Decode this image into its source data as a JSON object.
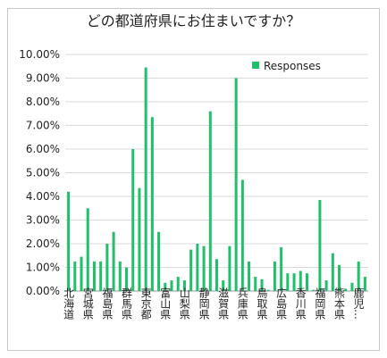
{
  "chart_data": {
    "type": "bar",
    "title": "どの都道府県にお住まいですか？",
    "series": [
      {
        "name": "Responses",
        "color": "#1fbf6b",
        "values": [
          4.2,
          1.25,
          1.45,
          3.5,
          1.25,
          1.25,
          2.0,
          2.5,
          1.25,
          1.0,
          6.0,
          4.35,
          9.45,
          7.35,
          2.5,
          0.35,
          0.45,
          0.6,
          0.45,
          1.75,
          2.0,
          1.9,
          7.6,
          1.35,
          0.45,
          1.9,
          9.0,
          4.7,
          1.25,
          0.6,
          0.5,
          0.05,
          1.25,
          1.85,
          0.75,
          0.75,
          0.85,
          0.75,
          0.05,
          3.85,
          0.45,
          1.6,
          1.1,
          0.1,
          0.35,
          1.25,
          0.6
        ]
      }
    ],
    "categories_shown": [
      "北海道",
      "宮城県",
      "福島県",
      "群馬県",
      "東京都",
      "富山県",
      "山梨県",
      "静岡県",
      "滋賀県",
      "兵庫県",
      "鳥取県",
      "広島県",
      "香川県",
      "福岡県",
      "熊本県",
      "鹿児…"
    ],
    "y_ticks": [
      "0.00%",
      "1.00%",
      "2.00%",
      "3.00%",
      "4.00%",
      "5.00%",
      "6.00%",
      "7.00%",
      "8.00%",
      "9.00%",
      "10.00%"
    ],
    "ylim": [
      0,
      10
    ],
    "legend_position": "top-right",
    "grid": true
  }
}
